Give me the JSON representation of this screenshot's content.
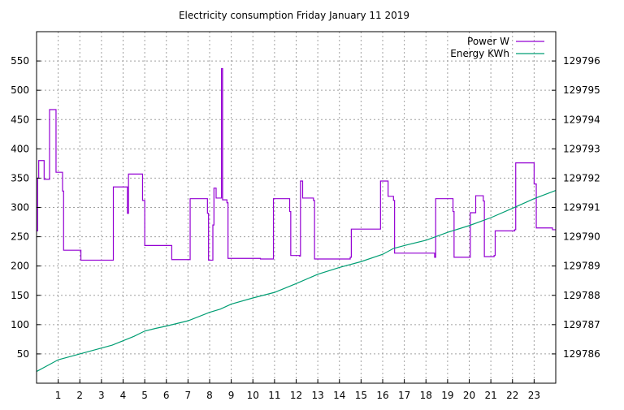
{
  "chart_data": {
    "type": "line",
    "title": "Electricity consumption Friday January 11 2019",
    "xlabel": "",
    "ylabel": "",
    "x_ticks": [
      "1",
      "2",
      "3",
      "4",
      "5",
      "6",
      "7",
      "8",
      "9",
      "10",
      "11",
      "12",
      "13",
      "14",
      "15",
      "16",
      "17",
      "18",
      "19",
      "20",
      "21",
      "22",
      "23"
    ],
    "xlim": [
      0,
      24
    ],
    "ylim_left": [
      0,
      600
    ],
    "yticks_left": [
      "50",
      "100",
      "150",
      "200",
      "250",
      "300",
      "350",
      "400",
      "450",
      "500",
      "550"
    ],
    "ylim_right": [
      129785,
      129797
    ],
    "yticks_right": [
      "129786",
      "129787",
      "129788",
      "129789",
      "129790",
      "129791",
      "129792",
      "129793",
      "129794",
      "129795",
      "129796"
    ],
    "grid": true,
    "legend_position": "top-right",
    "series": [
      {
        "name": "Power W",
        "axis": "left",
        "color": "#9400d3",
        "step": true,
        "points": [
          [
            0.0,
            260
          ],
          [
            0.05,
            350
          ],
          [
            0.1,
            380
          ],
          [
            0.35,
            348
          ],
          [
            0.6,
            467
          ],
          [
            0.9,
            360
          ],
          [
            1.2,
            328
          ],
          [
            1.25,
            227
          ],
          [
            2.0,
            227
          ],
          [
            2.05,
            210
          ],
          [
            3.5,
            210
          ],
          [
            3.55,
            335
          ],
          [
            4.2,
            290
          ],
          [
            4.25,
            357
          ],
          [
            4.9,
            312
          ],
          [
            5.0,
            235
          ],
          [
            6.2,
            235
          ],
          [
            6.25,
            211
          ],
          [
            7.05,
            211
          ],
          [
            7.1,
            315
          ],
          [
            7.9,
            290
          ],
          [
            7.95,
            210
          ],
          [
            8.15,
            270
          ],
          [
            8.2,
            333
          ],
          [
            8.3,
            316
          ],
          [
            8.55,
            537
          ],
          [
            8.6,
            313
          ],
          [
            8.8,
            308
          ],
          [
            8.85,
            213
          ],
          [
            10.3,
            213
          ],
          [
            10.35,
            212
          ],
          [
            10.9,
            212
          ],
          [
            10.95,
            315
          ],
          [
            11.7,
            293
          ],
          [
            11.75,
            218
          ],
          [
            12.15,
            217
          ],
          [
            12.2,
            345
          ],
          [
            12.3,
            316
          ],
          [
            12.8,
            312
          ],
          [
            12.85,
            212
          ],
          [
            14.5,
            215
          ],
          [
            14.55,
            263
          ],
          [
            15.85,
            263
          ],
          [
            15.9,
            345
          ],
          [
            16.25,
            319
          ],
          [
            16.5,
            312
          ],
          [
            16.55,
            222
          ],
          [
            18.35,
            222
          ],
          [
            18.4,
            215
          ],
          [
            18.45,
            315
          ],
          [
            19.25,
            293
          ],
          [
            19.3,
            215
          ],
          [
            20.0,
            215
          ],
          [
            20.05,
            291
          ],
          [
            20.3,
            320
          ],
          [
            20.65,
            311
          ],
          [
            20.7,
            216
          ],
          [
            21.15,
            218
          ],
          [
            21.2,
            260
          ],
          [
            22.1,
            262
          ],
          [
            22.15,
            376
          ],
          [
            23.0,
            340
          ],
          [
            23.1,
            265
          ],
          [
            23.85,
            262
          ],
          [
            24.0,
            262
          ]
        ]
      },
      {
        "name": "Energy KWh",
        "axis": "right",
        "color": "#009e73",
        "step": false,
        "points": [
          [
            0.0,
            129785.4
          ],
          [
            0.5,
            129785.6
          ],
          [
            1.0,
            129785.8
          ],
          [
            2.0,
            129786.0
          ],
          [
            3.0,
            129786.2
          ],
          [
            3.5,
            129786.3
          ],
          [
            4.0,
            129786.45
          ],
          [
            4.5,
            129786.6
          ],
          [
            5.0,
            129786.78
          ],
          [
            5.5,
            129786.87
          ],
          [
            6.0,
            129786.95
          ],
          [
            7.0,
            129787.13
          ],
          [
            8.0,
            129787.42
          ],
          [
            8.5,
            129787.53
          ],
          [
            9.0,
            129787.7
          ],
          [
            10.0,
            129787.91
          ],
          [
            11.0,
            129788.1
          ],
          [
            12.0,
            129788.4
          ],
          [
            13.0,
            129788.72
          ],
          [
            14.0,
            129788.95
          ],
          [
            15.0,
            129789.15
          ],
          [
            16.0,
            129789.4
          ],
          [
            16.5,
            129789.6
          ],
          [
            17.0,
            129789.7
          ],
          [
            18.0,
            129789.88
          ],
          [
            19.0,
            129790.15
          ],
          [
            20.0,
            129790.38
          ],
          [
            21.0,
            129790.65
          ],
          [
            22.0,
            129790.97
          ],
          [
            23.0,
            129791.3
          ],
          [
            24.0,
            129791.58
          ]
        ]
      }
    ]
  }
}
